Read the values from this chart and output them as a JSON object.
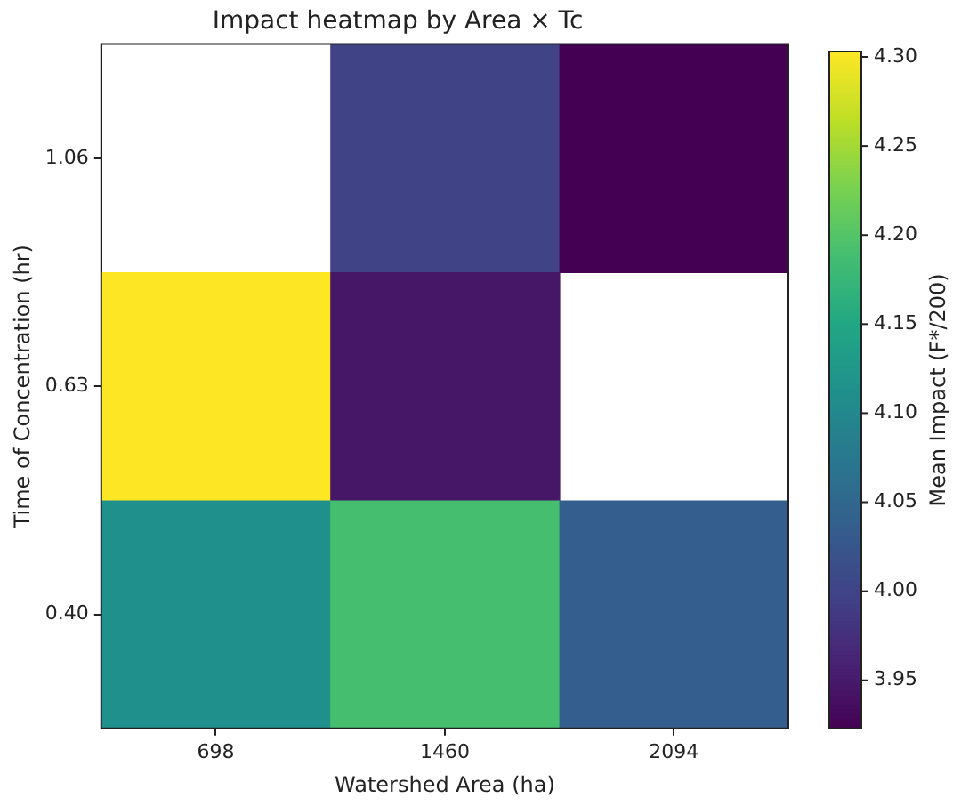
{
  "chart_data": {
    "type": "heatmap",
    "title": "Impact heatmap by Area × Tc",
    "xlabel": "Watershed Area (ha)",
    "ylabel": "Time of Concentration (hr)",
    "clabel": "Mean Impact (F*/200)",
    "categories": [
      "698",
      "1460",
      "2094"
    ],
    "y_categories": [
      "1.06",
      "0.63",
      "0.40"
    ],
    "cells": [
      [
        null,
        4.0,
        3.923
      ],
      [
        4.303,
        3.946,
        null
      ],
      [
        4.113,
        4.19,
        4.037
      ]
    ],
    "clim": [
      3.923,
      4.303
    ],
    "cticks": [
      3.95,
      {
        "value": 4.0,
        "label": "4.00"
      },
      4.05,
      {
        "value": 4.1,
        "label": "4.10"
      },
      4.15,
      {
        "value": 4.2,
        "label": "4.20"
      },
      4.25,
      {
        "value": 4.3,
        "label": "4.30"
      }
    ]
  }
}
